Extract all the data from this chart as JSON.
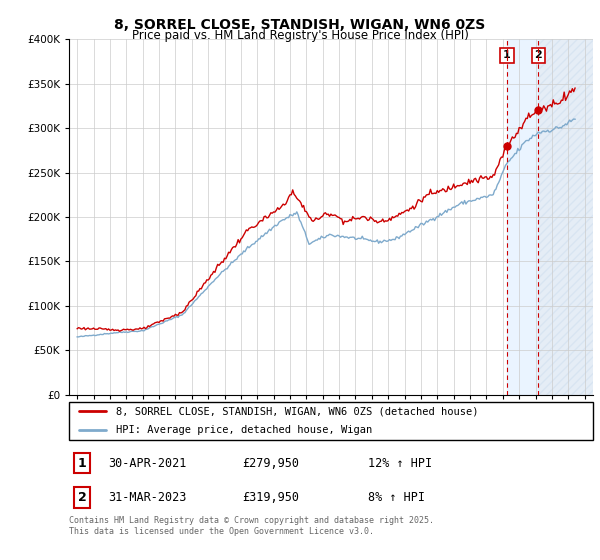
{
  "title": "8, SORREL CLOSE, STANDISH, WIGAN, WN6 0ZS",
  "subtitle": "Price paid vs. HM Land Registry's House Price Index (HPI)",
  "red_line_color": "#cc0000",
  "blue_line_color": "#7faacc",
  "shade_color": "#ddeeff",
  "hatch_color": "#ccddee",
  "vline_color": "#cc0000",
  "sale1_date": "30-APR-2021",
  "sale1_price": "£279,950",
  "sale1_hpi": "12% ↑ HPI",
  "sale2_date": "31-MAR-2023",
  "sale2_price": "£319,950",
  "sale2_hpi": "8% ↑ HPI",
  "legend1": "8, SORREL CLOSE, STANDISH, WIGAN, WN6 0ZS (detached house)",
  "legend2": "HPI: Average price, detached house, Wigan",
  "footnote": "Contains HM Land Registry data © Crown copyright and database right 2025.\nThis data is licensed under the Open Government Licence v3.0.",
  "ylim": [
    0,
    400000
  ],
  "yticks": [
    0,
    50000,
    100000,
    150000,
    200000,
    250000,
    300000,
    350000,
    400000
  ],
  "ytick_labels": [
    "£0",
    "£50K",
    "£100K",
    "£150K",
    "£200K",
    "£250K",
    "£300K",
    "£350K",
    "£400K"
  ],
  "xlim_start": 1994.5,
  "xlim_end": 2026.5,
  "sale1_year_dec": 2021.25,
  "sale2_year_dec": 2023.166,
  "sale1_price_val": 279950,
  "sale2_price_val": 319950
}
